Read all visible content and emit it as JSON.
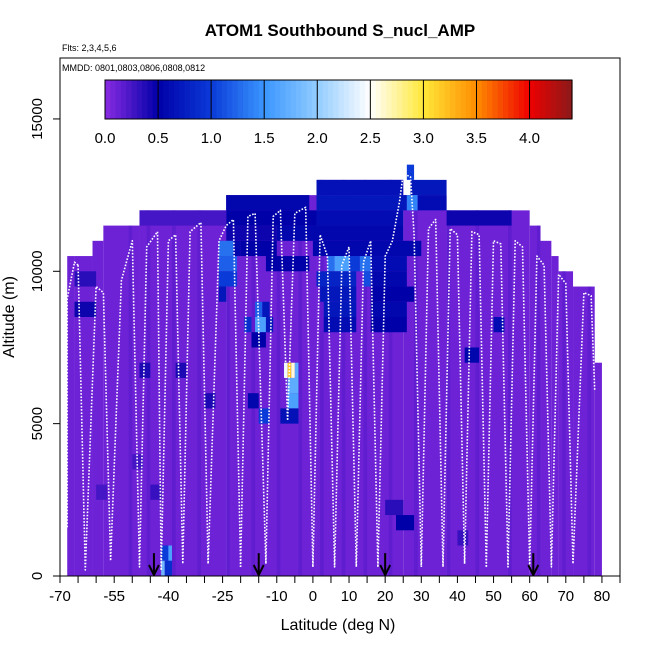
{
  "chart_data": {
    "type": "heatmap",
    "title": "ATOM1 Southbound S_nucl_AMP",
    "flights_label": "Flts: 2,3,4,5,6",
    "dates_label": "MMDD: 0801,0803,0806,0808,0812",
    "xlabel": "Latitude (deg N)",
    "ylabel": "Altitude (m)",
    "xlim": [
      -70,
      85
    ],
    "ylim": [
      0,
      17000
    ],
    "x_ticks": [
      {
        "value": -70,
        "label": "-70"
      },
      {
        "value": -55,
        "label": "-55"
      },
      {
        "value": -40,
        "label": "-40"
      },
      {
        "value": -25,
        "label": "-25"
      },
      {
        "value": -10,
        "label": "-10"
      },
      {
        "value": 0,
        "label": "0"
      },
      {
        "value": 10,
        "label": "10"
      },
      {
        "value": 20,
        "label": "20"
      },
      {
        "value": 30,
        "label": "30"
      },
      {
        "value": 40,
        "label": "40"
      },
      {
        "value": 50,
        "label": "50"
      },
      {
        "value": 60,
        "label": "60"
      },
      {
        "value": 70,
        "label": "70"
      },
      {
        "value": 80,
        "label": "80"
      }
    ],
    "x_minor_ticks": [
      -65,
      -60,
      -50,
      -45,
      -35,
      -30,
      -20,
      -15,
      -5,
      5,
      15,
      25,
      35,
      45,
      55,
      65,
      75,
      85
    ],
    "y_ticks": [
      {
        "value": 0,
        "label": "0"
      },
      {
        "value": 5000,
        "label": "5000"
      },
      {
        "value": 10000,
        "label": "10000"
      },
      {
        "value": 15000,
        "label": "15000"
      }
    ],
    "colorbar": {
      "range": [
        0,
        4.4
      ],
      "ticks": [
        {
          "value": 0,
          "label": "0.0"
        },
        {
          "value": 0.5,
          "label": "0.5"
        },
        {
          "value": 1.0,
          "label": "1.0"
        },
        {
          "value": 1.5,
          "label": "1.5"
        },
        {
          "value": 2.0,
          "label": "2.0"
        },
        {
          "value": 2.5,
          "label": "2.5"
        },
        {
          "value": 3.0,
          "label": "3.0"
        },
        {
          "value": 3.5,
          "label": "3.5"
        },
        {
          "value": 4.0,
          "label": "4.0"
        }
      ],
      "stops": [
        {
          "value": 0.0,
          "color": "#8a2be2"
        },
        {
          "value": 0.5,
          "color": "#0000a8"
        },
        {
          "value": 1.0,
          "color": "#0a3ad8"
        },
        {
          "value": 1.5,
          "color": "#3a96ff"
        },
        {
          "value": 2.0,
          "color": "#92ccff"
        },
        {
          "value": 2.5,
          "color": "#ffffff"
        },
        {
          "value": 3.0,
          "color": "#ffe838"
        },
        {
          "value": 3.5,
          "color": "#ff8c00"
        },
        {
          "value": 4.0,
          "color": "#ee0000"
        },
        {
          "value": 4.4,
          "color": "#8b1a1a"
        }
      ]
    },
    "envelope": [
      {
        "x0": -68,
        "x1": -66,
        "top": 10500
      },
      {
        "x0": -66,
        "x1": -61,
        "top": 10500
      },
      {
        "x0": -61,
        "x1": -58,
        "top": 11000
      },
      {
        "x0": -58,
        "x1": -48,
        "top": 11500
      },
      {
        "x0": -48,
        "x1": -24,
        "top": 12000
      },
      {
        "x0": -24,
        "x1": 1,
        "top": 12500
      },
      {
        "x0": 1,
        "x1": 25,
        "top": 13000
      },
      {
        "x0": 25,
        "x1": 37,
        "top": 12500
      },
      {
        "x0": 37,
        "x1": 60,
        "top": 12000
      },
      {
        "x0": 60,
        "x1": 63,
        "top": 11500
      },
      {
        "x0": 63,
        "x1": 66,
        "top": 11000
      },
      {
        "x0": 66,
        "x1": 68,
        "top": 10500
      },
      {
        "x0": 68,
        "x1": 72,
        "top": 10000
      },
      {
        "x0": 72,
        "x1": 78,
        "top": 9500
      },
      {
        "x0": 78,
        "x1": 80,
        "top": 7000
      }
    ],
    "base_value": 0.1,
    "cells": [
      {
        "lat": 26,
        "alt": 13250,
        "dlat": 2,
        "dalt": 500,
        "value": 1.0
      },
      {
        "lat": 1,
        "alt": 12750,
        "dlat": 24,
        "dalt": 500,
        "value": 0.65
      },
      {
        "lat": 27,
        "alt": 12750,
        "dlat": 10,
        "dalt": 500,
        "value": 0.7
      },
      {
        "lat": -24,
        "alt": 12250,
        "dlat": 23,
        "dalt": 500,
        "value": 0.55
      },
      {
        "lat": 1,
        "alt": 12250,
        "dlat": 25,
        "dalt": 500,
        "value": 0.7
      },
      {
        "lat": 26,
        "alt": 12250,
        "dlat": 3,
        "dalt": 500,
        "value": 1.4
      },
      {
        "lat": 29,
        "alt": 12250,
        "dlat": 8,
        "dalt": 500,
        "value": 0.6
      },
      {
        "lat": -24,
        "alt": 11750,
        "dlat": 25,
        "dalt": 500,
        "value": 0.5
      },
      {
        "lat": 1,
        "alt": 11750,
        "dlat": 24,
        "dalt": 500,
        "value": 0.6
      },
      {
        "lat": 37,
        "alt": 11750,
        "dlat": 18,
        "dalt": 500,
        "value": 0.45
      },
      {
        "lat": -48,
        "alt": 11750,
        "dlat": 24,
        "dalt": 500,
        "value": 0.25
      },
      {
        "lat": -24,
        "alt": 11250,
        "dlat": 14,
        "dalt": 500,
        "value": 0.45
      },
      {
        "lat": -10,
        "alt": 11250,
        "dlat": 35,
        "dalt": 500,
        "value": 0.55
      },
      {
        "lat": -26,
        "alt": 10750,
        "dlat": 4,
        "dalt": 500,
        "value": 1.3
      },
      {
        "lat": -22,
        "alt": 10750,
        "dlat": 2,
        "dalt": 500,
        "value": 0.55
      },
      {
        "lat": -20,
        "alt": 10750,
        "dlat": 10,
        "dalt": 500,
        "value": 0.5
      },
      {
        "lat": 0,
        "alt": 10750,
        "dlat": 30,
        "dalt": 500,
        "value": 0.55
      },
      {
        "lat": -26,
        "alt": 10250,
        "dlat": 5,
        "dalt": 500,
        "value": 1.2
      },
      {
        "lat": 4,
        "alt": 10250,
        "dlat": 2,
        "dalt": 500,
        "value": 1.3
      },
      {
        "lat": 6,
        "alt": 10250,
        "dlat": 4,
        "dalt": 500,
        "value": 1.6
      },
      {
        "lat": 10,
        "alt": 10250,
        "dlat": 3,
        "dalt": 500,
        "value": 1.0
      },
      {
        "lat": 13,
        "alt": 10250,
        "dlat": 3,
        "dalt": 500,
        "value": 1.3
      },
      {
        "lat": -13,
        "alt": 10250,
        "dlat": 12,
        "dalt": 500,
        "value": 0.5
      },
      {
        "lat": 16,
        "alt": 10250,
        "dlat": 10,
        "dalt": 500,
        "value": 0.6
      },
      {
        "lat": -26,
        "alt": 9750,
        "dlat": 5,
        "dalt": 500,
        "value": 1.0
      },
      {
        "lat": 1,
        "alt": 9750,
        "dlat": 11,
        "dalt": 500,
        "value": 0.8
      },
      {
        "lat": 14,
        "alt": 9750,
        "dlat": 2,
        "dalt": 500,
        "value": 1.1
      },
      {
        "lat": 16,
        "alt": 9750,
        "dlat": 10,
        "dalt": 500,
        "value": 0.55
      },
      {
        "lat": -66,
        "alt": 9750,
        "dlat": 6,
        "dalt": 500,
        "value": 0.35
      },
      {
        "lat": -26,
        "alt": 9250,
        "dlat": 2,
        "dalt": 500,
        "value": 0.7
      },
      {
        "lat": 2,
        "alt": 9250,
        "dlat": 10,
        "dalt": 500,
        "value": 0.7
      },
      {
        "lat": 16,
        "alt": 9250,
        "dlat": 12,
        "dalt": 500,
        "value": 0.5
      },
      {
        "lat": -66,
        "alt": 8750,
        "dlat": 6,
        "dalt": 500,
        "value": 0.45
      },
      {
        "lat": -16,
        "alt": 8750,
        "dlat": 2,
        "dalt": 500,
        "value": 1.2
      },
      {
        "lat": -14,
        "alt": 8750,
        "dlat": 2,
        "dalt": 500,
        "value": 0.7
      },
      {
        "lat": 3,
        "alt": 8750,
        "dlat": 9,
        "dalt": 500,
        "value": 0.7
      },
      {
        "lat": 16,
        "alt": 8750,
        "dlat": 10,
        "dalt": 500,
        "value": 0.55
      },
      {
        "lat": -19,
        "alt": 8250,
        "dlat": 2,
        "dalt": 500,
        "value": 0.9
      },
      {
        "lat": -16,
        "alt": 8250,
        "dlat": 3,
        "dalt": 500,
        "value": 1.6
      },
      {
        "lat": -13,
        "alt": 8250,
        "dlat": 2,
        "dalt": 500,
        "value": 0.7
      },
      {
        "lat": 3,
        "alt": 8250,
        "dlat": 9,
        "dalt": 500,
        "value": 0.6
      },
      {
        "lat": 16,
        "alt": 8250,
        "dlat": 10,
        "dalt": 500,
        "value": 0.5
      },
      {
        "lat": 50,
        "alt": 8250,
        "dlat": 3,
        "dalt": 500,
        "value": 0.6
      },
      {
        "lat": -17,
        "alt": 7750,
        "dlat": 4,
        "dalt": 500,
        "value": 0.5
      },
      {
        "lat": 42,
        "alt": 7250,
        "dlat": 4,
        "dalt": 500,
        "value": 0.55
      },
      {
        "lat": -48,
        "alt": 6750,
        "dlat": 3,
        "dalt": 500,
        "value": 0.4
      },
      {
        "lat": -38,
        "alt": 6750,
        "dlat": 3,
        "dalt": 500,
        "value": 0.4
      },
      {
        "lat": -8,
        "alt": 6750,
        "dlat": 1,
        "dalt": 500,
        "value": 2.4
      },
      {
        "lat": -7,
        "alt": 6750,
        "dlat": 1,
        "dalt": 500,
        "value": 3.2
      },
      {
        "lat": -6,
        "alt": 6750,
        "dlat": 1,
        "dalt": 500,
        "value": 2.6
      },
      {
        "lat": -5,
        "alt": 6750,
        "dlat": 1,
        "dalt": 500,
        "value": 1.7
      },
      {
        "lat": -7,
        "alt": 6250,
        "dlat": 3,
        "dalt": 500,
        "value": 1.7
      },
      {
        "lat": -7,
        "alt": 5750,
        "dlat": 3,
        "dalt": 500,
        "value": 1.6
      },
      {
        "lat": -18,
        "alt": 5750,
        "dlat": 3,
        "dalt": 500,
        "value": 0.55
      },
      {
        "lat": -30,
        "alt": 5750,
        "dlat": 3,
        "dalt": 500,
        "value": 0.4
      },
      {
        "lat": -15,
        "alt": 5250,
        "dlat": 3,
        "dalt": 500,
        "value": 1.0
      },
      {
        "lat": -9,
        "alt": 5250,
        "dlat": 5,
        "dalt": 500,
        "value": 0.65
      },
      {
        "lat": -50,
        "alt": 3750,
        "dlat": 3,
        "dalt": 500,
        "value": 0.25
      },
      {
        "lat": -60,
        "alt": 2750,
        "dlat": 3,
        "dalt": 500,
        "value": 0.25
      },
      {
        "lat": -45,
        "alt": 2750,
        "dlat": 3,
        "dalt": 500,
        "value": 0.3
      },
      {
        "lat": 20,
        "alt": 2250,
        "dlat": 5,
        "dalt": 500,
        "value": 0.35
      },
      {
        "lat": 23,
        "alt": 1750,
        "dlat": 5,
        "dalt": 500,
        "value": 0.5
      },
      {
        "lat": 40,
        "alt": 1250,
        "dlat": 3,
        "dalt": 500,
        "value": 0.3
      },
      {
        "lat": -42,
        "alt": 750,
        "dlat": 2,
        "dalt": 500,
        "value": 1.0
      },
      {
        "lat": -40,
        "alt": 750,
        "dlat": 1,
        "dalt": 500,
        "value": 1.6
      },
      {
        "lat": -42,
        "alt": 250,
        "dlat": 1,
        "dalt": 500,
        "value": 1.8
      },
      {
        "lat": -41,
        "alt": 250,
        "dlat": 2,
        "dalt": 500,
        "value": 0.9
      }
    ],
    "descent_lats": [
      -50.5,
      -45.5,
      -38.5,
      -31.5,
      -23.5,
      -16.5,
      -9.5,
      -3.5,
      2.5,
      8.5,
      14.5,
      21.5,
      28.5,
      37.5,
      45.5,
      54.5,
      62.5,
      69.5,
      76.5
    ],
    "flight_paths": [
      [
        [
          -68,
          1600
        ],
        [
          -68,
          9100
        ],
        [
          -66,
          10300
        ],
        [
          -65,
          10200
        ]
      ],
      [
        [
          -65,
          10200
        ],
        [
          -63,
          200
        ],
        [
          -60,
          9500
        ],
        [
          -58,
          9300
        ],
        [
          -56,
          500
        ],
        [
          -53,
          9700
        ],
        [
          -50,
          11000
        ],
        [
          -48,
          300
        ],
        [
          -46,
          10800
        ],
        [
          -43,
          11300
        ],
        [
          -42,
          200
        ]
      ],
      [
        [
          -42,
          200
        ],
        [
          -40,
          11000
        ],
        [
          -38,
          11200
        ],
        [
          -36,
          400
        ],
        [
          -34,
          11300
        ],
        [
          -31,
          11600
        ],
        [
          -29,
          400
        ],
        [
          -26,
          11000
        ],
        [
          -24,
          11500
        ],
        [
          -22,
          11700
        ],
        [
          -20,
          300
        ]
      ],
      [
        [
          -20,
          300
        ],
        [
          -18,
          11800
        ],
        [
          -16,
          11900
        ],
        [
          -13,
          400
        ],
        [
          -11,
          11800
        ],
        [
          -9,
          12000
        ],
        [
          -7,
          5100
        ],
        [
          -5,
          11900
        ],
        [
          -2,
          12100
        ],
        [
          0,
          300
        ]
      ],
      [
        [
          0,
          300
        ],
        [
          2,
          11200
        ],
        [
          4,
          10500
        ],
        [
          6,
          300
        ],
        [
          8,
          10200
        ],
        [
          10,
          10800
        ],
        [
          12,
          300
        ],
        [
          14,
          10300
        ],
        [
          16,
          11000
        ],
        [
          18,
          300
        ]
      ],
      [
        [
          18,
          300
        ],
        [
          20,
          10500
        ],
        [
          22,
          11000
        ],
        [
          24,
          12300
        ],
        [
          25,
          13200
        ],
        [
          27,
          13100
        ],
        [
          28,
          11200
        ],
        [
          30,
          300
        ]
      ],
      [
        [
          30,
          300
        ],
        [
          32,
          11400
        ],
        [
          34,
          11700
        ],
        [
          36,
          300
        ],
        [
          38,
          11400
        ],
        [
          40,
          11200
        ],
        [
          42,
          400
        ],
        [
          44,
          11300
        ],
        [
          46,
          11200
        ],
        [
          48,
          300
        ]
      ],
      [
        [
          48,
          300
        ],
        [
          50,
          11000
        ],
        [
          52,
          10900
        ],
        [
          54,
          300
        ],
        [
          56,
          11000
        ],
        [
          58,
          10800
        ],
        [
          60,
          300
        ]
      ],
      [
        [
          60,
          300
        ],
        [
          62,
          10500
        ],
        [
          64,
          10200
        ],
        [
          66,
          300
        ],
        [
          68,
          9900
        ],
        [
          70,
          9600
        ],
        [
          72,
          400
        ],
        [
          75,
          9300
        ],
        [
          77,
          9200
        ],
        [
          78,
          6100
        ]
      ]
    ],
    "arrows": [
      -44,
      -15,
      20,
      61
    ]
  }
}
